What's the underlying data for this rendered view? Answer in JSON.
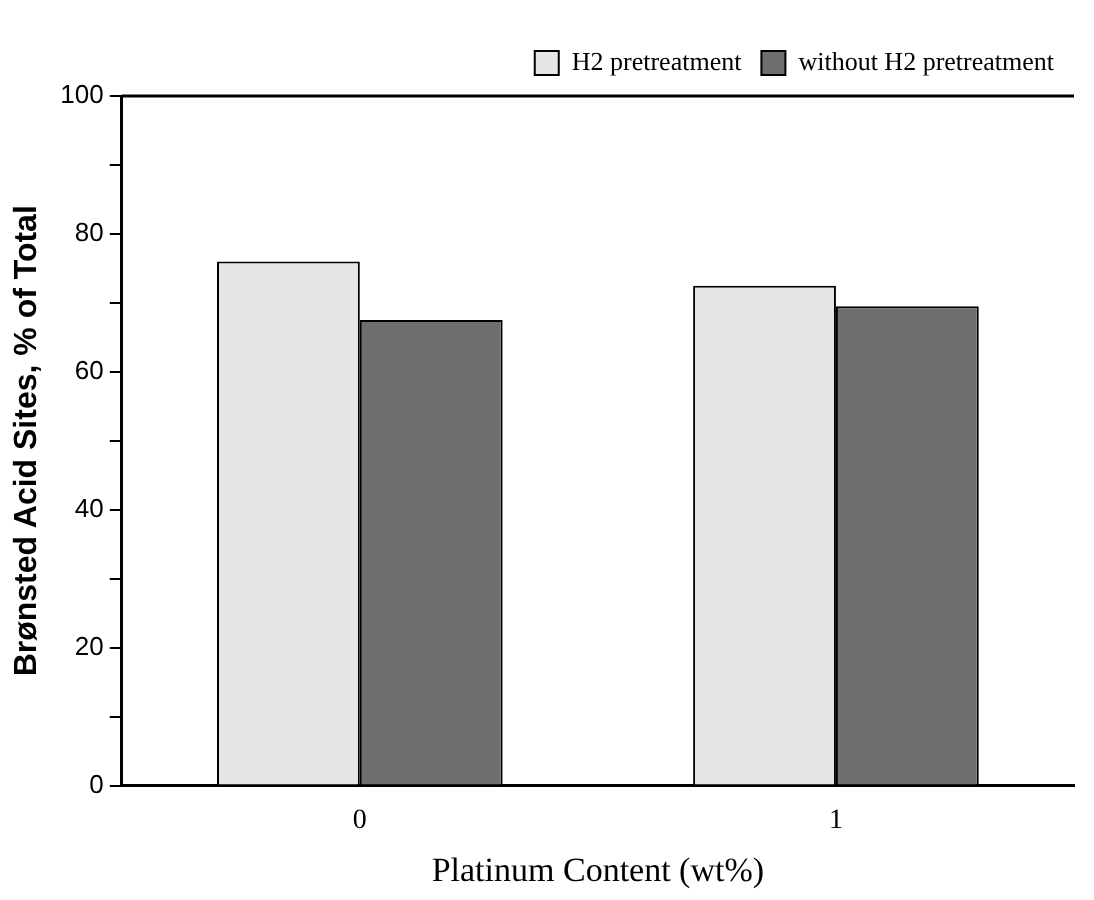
{
  "chart_data": {
    "type": "bar",
    "xlabel": "Platinum Content (wt%)",
    "ylabel": "Brønsted Acid Sites, % of Total",
    "categories": [
      "0",
      "1"
    ],
    "series": [
      {
        "name": "H2 pretreatment",
        "color": "#e6e6e6",
        "values": [
          76,
          72.5
        ]
      },
      {
        "name": "without H2 pretreatment",
        "color": "#6e6e6e",
        "values": [
          67.5,
          69.5
        ]
      }
    ],
    "ylim": [
      0,
      100
    ],
    "yticks": [
      0,
      {
        "value": 10,
        "label": null
      },
      20,
      {
        "value": 30,
        "label": null
      },
      40,
      {
        "value": 50,
        "label": null
      },
      60,
      {
        "value": 70,
        "label": null
      },
      80,
      {
        "value": 90,
        "label": null
      },
      100
    ],
    "grid": false,
    "legend": "top right"
  }
}
